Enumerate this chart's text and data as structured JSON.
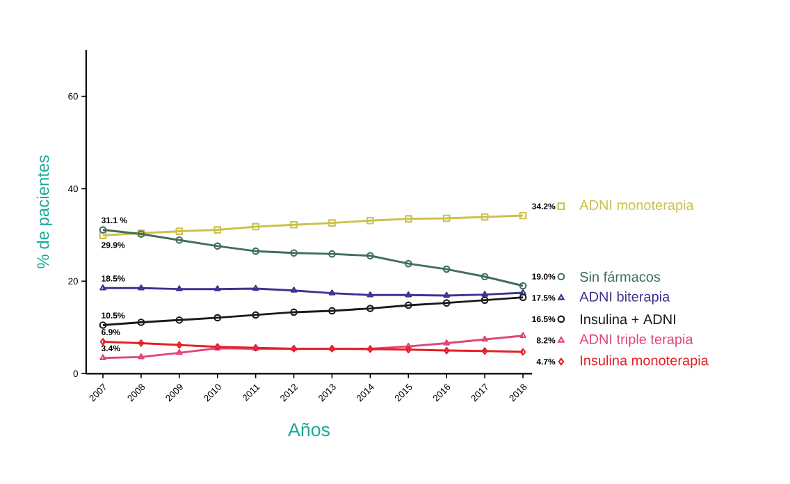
{
  "chart_data": {
    "type": "line",
    "xlabel": "Años",
    "ylabel": "% de pacientes",
    "categories": [
      "2007",
      "2008",
      "2009",
      "2010",
      "2011",
      "2012",
      "2013",
      "2014",
      "2015",
      "2016",
      "2017",
      "2018"
    ],
    "ylim": [
      0,
      70
    ],
    "yticks": [
      0,
      20,
      40,
      60
    ],
    "legend": "right",
    "series": [
      {
        "name": "ADNI monoterapia",
        "color": "#cdc04a",
        "marker": "square",
        "values": [
          29.9,
          30.4,
          30.8,
          31.1,
          31.8,
          32.2,
          32.6,
          33.1,
          33.5,
          33.6,
          33.9,
          34.2
        ],
        "value_labels": [
          "29.9%",
          null,
          null,
          null,
          null,
          null,
          null,
          null,
          null,
          null,
          null,
          "34.2%"
        ]
      },
      {
        "name": "Sin fármacos",
        "color": "#3f6f58",
        "marker": "circle",
        "values": [
          31.1,
          30.2,
          28.9,
          27.6,
          26.5,
          26.1,
          25.9,
          25.5,
          23.8,
          22.6,
          21.0,
          19.0
        ],
        "value_labels": [
          "31.1 %",
          null,
          null,
          null,
          null,
          null,
          null,
          null,
          null,
          null,
          null,
          "19.0%"
        ]
      },
      {
        "name": "ADNI biterapia",
        "color": "#3e3391",
        "marker": "triangle",
        "values": [
          18.5,
          18.5,
          18.3,
          18.3,
          18.4,
          18.0,
          17.4,
          17.0,
          17.0,
          16.9,
          17.1,
          17.5
        ],
        "value_labels": [
          "18.5%",
          null,
          null,
          null,
          null,
          null,
          null,
          null,
          null,
          null,
          null,
          "17.5%"
        ]
      },
      {
        "name": "Insulina + ADNI",
        "color": "#1a1a1a",
        "marker": "circle",
        "values": [
          10.5,
          11.1,
          11.6,
          12.1,
          12.7,
          13.3,
          13.6,
          14.1,
          14.8,
          15.3,
          15.9,
          16.5
        ],
        "value_labels": [
          "10.5%",
          null,
          null,
          null,
          null,
          null,
          null,
          null,
          null,
          null,
          null,
          "16.5%"
        ]
      },
      {
        "name": "ADNI triple terapia",
        "color": "#e2447a",
        "marker": "triangle",
        "values": [
          3.4,
          3.6,
          4.5,
          5.5,
          5.4,
          5.4,
          5.4,
          5.4,
          5.9,
          6.6,
          7.4,
          8.2
        ],
        "value_labels": [
          "3.4%",
          null,
          null,
          null,
          null,
          null,
          null,
          null,
          null,
          null,
          null,
          "8.2%"
        ]
      },
      {
        "name": "Insulina monoterapia",
        "color": "#e41f26",
        "marker": "diamond",
        "values": [
          6.9,
          6.6,
          6.2,
          5.8,
          5.6,
          5.4,
          5.4,
          5.3,
          5.2,
          5.0,
          4.9,
          4.7
        ],
        "value_labels": [
          "6.9%",
          null,
          null,
          null,
          null,
          null,
          null,
          null,
          null,
          null,
          null,
          "4.7%"
        ]
      }
    ]
  }
}
